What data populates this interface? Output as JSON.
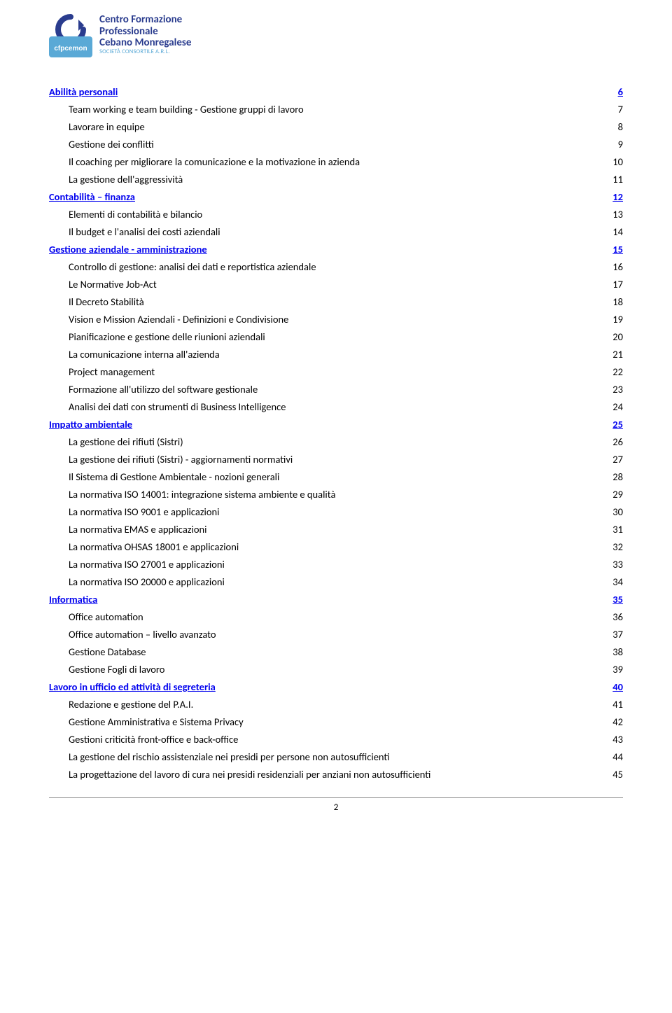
{
  "logo": {
    "line1": "Centro Formazione",
    "line2": "Professionale",
    "line3": "Cebano Monregalese",
    "sub": "SOCIETÀ CONSORTILE A.R.L.",
    "badge_bg": "#5aa9d6",
    "badge_text": "cfpcemon",
    "brand_color": "#2a3c8e"
  },
  "page_number": "2",
  "toc": [
    {
      "label": "Abilità personali",
      "page": "6",
      "is_section": true
    },
    {
      "label": "Team working e team building - Gestione gruppi di lavoro",
      "page": "7"
    },
    {
      "label": "Lavorare in equipe",
      "page": "8"
    },
    {
      "label": "Gestione dei conflitti",
      "page": "9"
    },
    {
      "label": "Il coaching per migliorare la comunicazione e la motivazione in azienda",
      "page": "10"
    },
    {
      "label": "La gestione dell'aggressività",
      "page": "11"
    },
    {
      "label": "Contabilità – finanza",
      "page": "12",
      "is_section": true
    },
    {
      "label": "Elementi di contabilità e bilancio",
      "page": "13"
    },
    {
      "label": "Il budget e l'analisi dei costi aziendali",
      "page": "14"
    },
    {
      "label": "Gestione aziendale - amministrazione",
      "page": "15",
      "is_section": true
    },
    {
      "label": "Controllo di gestione: analisi dei dati e reportistica aziendale",
      "page": "16"
    },
    {
      "label": "Le Normative Job-Act",
      "page": "17"
    },
    {
      "label": "Il Decreto Stabilità",
      "page": "18"
    },
    {
      "label": "Vision e Mission Aziendali - Definizioni e Condivisione",
      "page": "19"
    },
    {
      "label": "Pianificazione e gestione delle riunioni aziendali",
      "page": "20"
    },
    {
      "label": "La comunicazione interna all'azienda",
      "page": "21"
    },
    {
      "label": "Project management",
      "page": "22"
    },
    {
      "label": "Formazione all'utilizzo del software gestionale",
      "page": "23"
    },
    {
      "label": "Analisi dei dati con strumenti di Business Intelligence",
      "page": "24"
    },
    {
      "label": "Impatto ambientale",
      "page": "25",
      "is_section": true
    },
    {
      "label": "La gestione dei rifiuti (Sistri)",
      "page": "26"
    },
    {
      "label": "La gestione dei rifiuti (Sistri) - aggiornamenti normativi",
      "page": "27"
    },
    {
      "label": "Il Sistema di Gestione Ambientale - nozioni generali",
      "page": "28"
    },
    {
      "label": "La normativa ISO 14001: integrazione sistema ambiente e qualità",
      "page": "29"
    },
    {
      "label": "La normativa ISO 9001 e applicazioni",
      "page": "30"
    },
    {
      "label": "La normativa EMAS e applicazioni",
      "page": "31"
    },
    {
      "label": "La normativa OHSAS 18001 e applicazioni",
      "page": "32"
    },
    {
      "label": "La normativa  ISO 27001 e applicazioni",
      "page": "33"
    },
    {
      "label": "La normativa  ISO 20000 e applicazioni",
      "page": "34"
    },
    {
      "label": "Informatica",
      "page": "35",
      "is_section": true
    },
    {
      "label": "Office automation",
      "page": "36"
    },
    {
      "label": "Office automation – livello avanzato",
      "page": "37"
    },
    {
      "label": "Gestione Database",
      "page": "38"
    },
    {
      "label": "Gestione Fogli di lavoro",
      "page": "39"
    },
    {
      "label": "Lavoro in ufficio ed attività di segreteria",
      "page": "40",
      "is_section": true
    },
    {
      "label": "Redazione e gestione del P.A.I.",
      "page": "41"
    },
    {
      "label": "Gestione Amministrativa e Sistema Privacy",
      "page": "42"
    },
    {
      "label": "Gestioni criticità front-office e back-office",
      "page": "43"
    },
    {
      "label": "La gestione del rischio assistenziale nei presidi per persone non autosufficienti",
      "page": "44"
    },
    {
      "label": "La progettazione del lavoro di cura nei presidi residenziali per anziani non autosufficienti",
      "page": "45"
    }
  ]
}
